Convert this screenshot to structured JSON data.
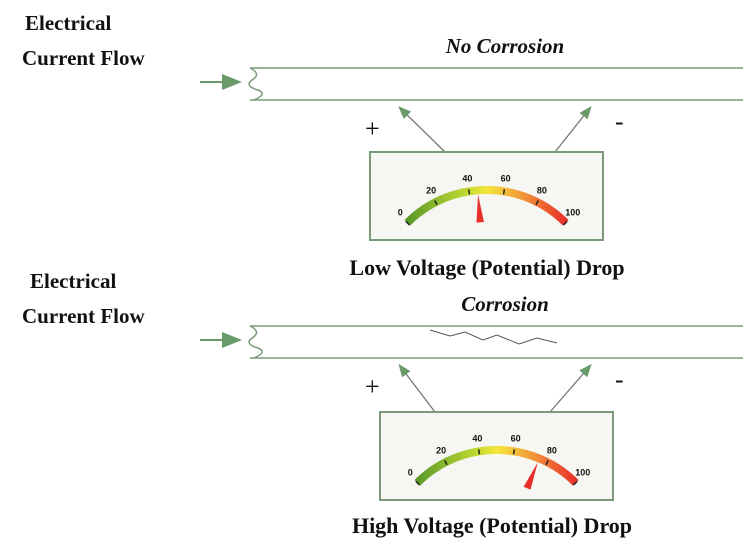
{
  "panels": [
    {
      "label_lines": [
        "Electrical",
        "Current Flow"
      ],
      "title": "No Corrosion",
      "plus": "+",
      "minus": "-",
      "scale": [
        0,
        20,
        40,
        60,
        80,
        100
      ],
      "reading": 45,
      "caption": "Low Voltage (Potential) Drop"
    },
    {
      "label_lines": [
        "Electrical",
        "Current Flow"
      ],
      "title": "Corrosion",
      "plus": "+",
      "minus": "-",
      "scale": [
        0,
        20,
        40,
        60,
        80,
        100
      ],
      "reading": 75,
      "caption": "High Voltage (Potential) Drop"
    }
  ]
}
